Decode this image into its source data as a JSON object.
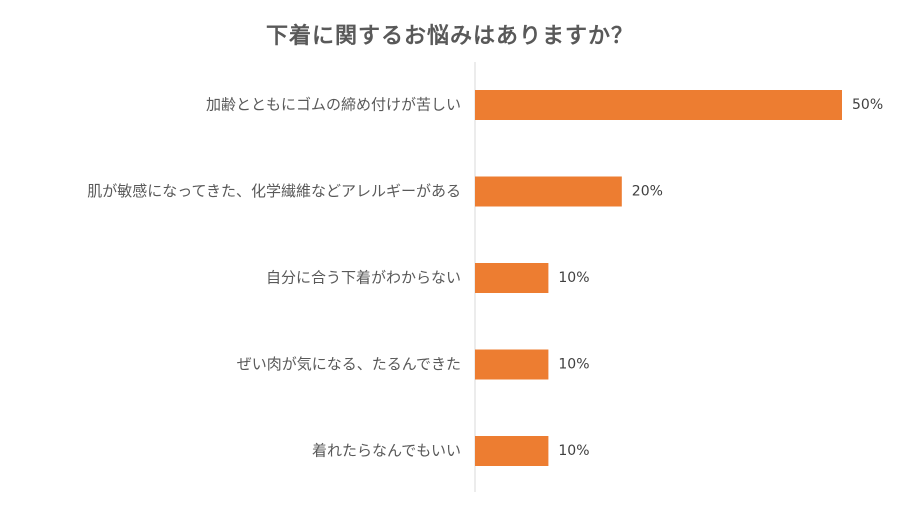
{
  "chart_data": {
    "type": "bar",
    "orientation": "horizontal",
    "title": "下着に関するお悩みはありますか？",
    "categories": [
      "加齢とともにゴムの締め付けが苦しい",
      "肌が敏感になってきた、化学繊維などアレルギーがある",
      "自分に合う下着がわからない",
      "ぜい肉が気になる、たるんできた",
      "着れたらなんでもいい"
    ],
    "values": [
      50,
      20,
      10,
      10,
      10
    ],
    "value_labels": [
      "50%",
      "20%",
      "10%",
      "10%",
      "10%"
    ],
    "xlim": [
      0,
      50
    ],
    "grid": false,
    "bar_color": "#ED7D31",
    "axis_color": "#D9D9D9"
  }
}
